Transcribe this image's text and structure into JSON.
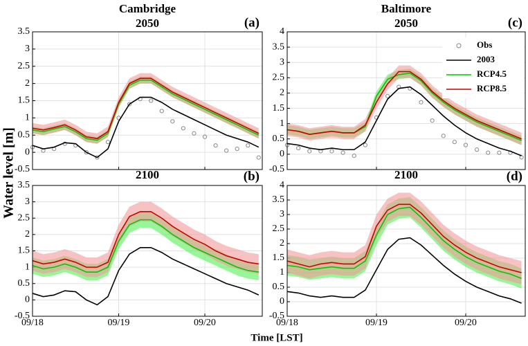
{
  "figure": {
    "xlabel": "Time [LST]",
    "ylabel": "Water level [m]"
  },
  "chart_data": [
    {
      "type": "line",
      "title": "Cambridge",
      "subtitle": "2050",
      "panel_label": "(a)",
      "grid": true,
      "x": [
        0,
        3,
        6,
        9,
        12,
        15,
        18,
        21,
        24,
        27,
        30,
        33,
        36,
        39,
        42,
        45,
        48,
        51,
        54,
        57,
        60,
        63
      ],
      "xlim": [
        0,
        64
      ],
      "xticks": [
        0,
        24,
        48
      ],
      "ylim": [
        -0.5,
        3.5
      ],
      "yticks": [
        -0.5,
        0,
        0.5,
        1,
        1.5,
        2,
        2.5,
        3,
        3.5
      ],
      "series": [
        {
          "marker": "circle",
          "color": "#888888",
          "values": [
            0.15,
            0.05,
            0.1,
            0.25,
            0.2,
            0.0,
            -0.15,
            0.3,
            1.0,
            1.4,
            1.55,
            1.5,
            1.2,
            0.9,
            0.7,
            0.55,
            0.45,
            0.2,
            0.05,
            0.1,
            0.2,
            -0.15
          ]
        },
        {
          "color": "#000000",
          "values": [
            0.2,
            0.1,
            0.15,
            0.28,
            0.25,
            0.0,
            -0.15,
            0.1,
            0.9,
            1.4,
            1.6,
            1.6,
            1.45,
            1.25,
            1.1,
            0.95,
            0.8,
            0.65,
            0.5,
            0.4,
            0.3,
            0.15
          ]
        },
        {
          "color": "#00c800",
          "band_color": "#55ee55",
          "values": [
            0.65,
            0.6,
            0.68,
            0.75,
            0.6,
            0.4,
            0.35,
            0.55,
            1.4,
            1.95,
            2.1,
            2.1,
            1.9,
            1.7,
            1.55,
            1.4,
            1.25,
            1.1,
            0.95,
            0.8,
            0.65,
            0.5
          ],
          "lower": [
            0.55,
            0.5,
            0.58,
            0.65,
            0.5,
            0.3,
            0.25,
            0.45,
            1.3,
            1.85,
            2.0,
            2.0,
            1.8,
            1.6,
            1.45,
            1.3,
            1.15,
            1.0,
            0.85,
            0.7,
            0.55,
            0.4
          ],
          "upper": [
            0.75,
            0.7,
            0.78,
            0.85,
            0.7,
            0.5,
            0.45,
            0.65,
            1.5,
            2.05,
            2.2,
            2.2,
            2.0,
            1.8,
            1.65,
            1.5,
            1.35,
            1.2,
            1.05,
            0.9,
            0.75,
            0.6
          ]
        },
        {
          "color": "#cc0000",
          "band_color": "#f49a9a",
          "values": [
            0.7,
            0.65,
            0.72,
            0.8,
            0.65,
            0.45,
            0.4,
            0.6,
            1.45,
            2.0,
            2.15,
            2.15,
            1.95,
            1.75,
            1.6,
            1.45,
            1.3,
            1.15,
            1.0,
            0.85,
            0.7,
            0.55
          ],
          "lower": [
            0.55,
            0.5,
            0.57,
            0.65,
            0.5,
            0.3,
            0.25,
            0.45,
            1.3,
            1.85,
            2.0,
            2.0,
            1.8,
            1.6,
            1.45,
            1.3,
            1.15,
            1.0,
            0.85,
            0.7,
            0.55,
            0.4
          ],
          "upper": [
            0.85,
            0.8,
            0.87,
            0.95,
            0.8,
            0.6,
            0.55,
            0.75,
            1.6,
            2.15,
            2.3,
            2.3,
            2.1,
            1.9,
            1.75,
            1.6,
            1.45,
            1.3,
            1.15,
            1.0,
            0.85,
            0.7
          ]
        }
      ]
    },
    {
      "type": "line",
      "title": "2100",
      "panel_label": "(b)",
      "grid": true,
      "x": [
        0,
        3,
        6,
        9,
        12,
        15,
        18,
        21,
        24,
        27,
        30,
        33,
        36,
        39,
        42,
        45,
        48,
        51,
        54,
        57,
        60,
        63
      ],
      "xlim": [
        0,
        64
      ],
      "xticks": [
        {
          "value": 0,
          "label": "09/18"
        },
        {
          "value": 24,
          "label": "09/19"
        },
        {
          "value": 48,
          "label": "09/20"
        }
      ],
      "ylim": [
        -0.5,
        3.5
      ],
      "yticks": [
        -0.5,
        0,
        0.5,
        1,
        1.5,
        2,
        2.5,
        3,
        3.5
      ],
      "series": [
        {
          "color": "#000000",
          "values": [
            0.2,
            0.1,
            0.15,
            0.28,
            0.25,
            0.0,
            -0.15,
            0.1,
            0.9,
            1.4,
            1.6,
            1.6,
            1.45,
            1.25,
            1.1,
            0.95,
            0.8,
            0.65,
            0.5,
            0.4,
            0.3,
            0.15
          ]
        },
        {
          "color": "#00c800",
          "band_color": "#55ee55",
          "values": [
            1.05,
            0.95,
            1.0,
            1.1,
            1.0,
            0.85,
            0.85,
            1.0,
            1.8,
            2.3,
            2.45,
            2.45,
            2.25,
            2.0,
            1.8,
            1.6,
            1.45,
            1.3,
            1.15,
            1.0,
            0.9,
            0.85
          ],
          "lower": [
            0.8,
            0.7,
            0.75,
            0.85,
            0.75,
            0.6,
            0.6,
            0.75,
            1.55,
            2.05,
            2.2,
            2.2,
            2.0,
            1.75,
            1.55,
            1.35,
            1.2,
            1.05,
            0.9,
            0.75,
            0.65,
            0.6
          ],
          "upper": [
            1.3,
            1.2,
            1.25,
            1.35,
            1.25,
            1.1,
            1.1,
            1.25,
            2.05,
            2.55,
            2.7,
            2.7,
            2.5,
            2.25,
            2.05,
            1.85,
            1.7,
            1.55,
            1.4,
            1.25,
            1.15,
            1.1
          ]
        },
        {
          "color": "#cc0000",
          "band_color": "#f49a9a",
          "values": [
            1.2,
            1.1,
            1.15,
            1.25,
            1.15,
            1.0,
            1.0,
            1.15,
            2.0,
            2.55,
            2.7,
            2.7,
            2.5,
            2.25,
            2.05,
            1.85,
            1.7,
            1.5,
            1.35,
            1.25,
            1.15,
            1.1
          ],
          "lower": [
            0.9,
            0.8,
            0.85,
            0.95,
            0.85,
            0.7,
            0.7,
            0.85,
            1.7,
            2.25,
            2.4,
            2.4,
            2.2,
            1.95,
            1.75,
            1.55,
            1.4,
            1.2,
            1.05,
            0.95,
            0.85,
            0.8
          ],
          "upper": [
            1.5,
            1.4,
            1.45,
            1.55,
            1.45,
            1.3,
            1.3,
            1.45,
            2.3,
            2.85,
            3.0,
            3.0,
            2.8,
            2.55,
            2.35,
            2.15,
            2.0,
            1.8,
            1.65,
            1.55,
            1.45,
            1.4
          ]
        }
      ]
    },
    {
      "type": "line",
      "title": "Baltimore",
      "subtitle": "2050",
      "panel_label": "(c)",
      "grid": true,
      "legend": "upper right",
      "x": [
        0,
        3,
        6,
        9,
        12,
        15,
        18,
        21,
        24,
        27,
        30,
        33,
        36,
        39,
        42,
        45,
        48,
        51,
        54,
        57,
        60,
        63
      ],
      "xlim": [
        0,
        64
      ],
      "xticks": [
        0,
        24,
        48
      ],
      "ylim": [
        -0.5,
        4
      ],
      "yticks": [
        -0.5,
        0,
        0.5,
        1,
        1.5,
        2,
        2.5,
        3,
        3.5,
        4
      ],
      "series": [
        {
          "name": "Obs",
          "marker": "circle",
          "color": "#888888",
          "values": [
            0.3,
            0.2,
            0.1,
            0.1,
            0.1,
            0.05,
            -0.05,
            0.3,
            1.2,
            1.9,
            2.2,
            2.15,
            1.7,
            1.1,
            0.6,
            0.4,
            0.3,
            0.15,
            0.05,
            0.05,
            0.05,
            -0.1
          ]
        },
        {
          "name": "2003",
          "color": "#000000",
          "values": [
            0.35,
            0.3,
            0.2,
            0.15,
            0.2,
            0.15,
            0.15,
            0.4,
            1.1,
            1.8,
            2.15,
            2.2,
            1.95,
            1.6,
            1.25,
            0.95,
            0.7,
            0.5,
            0.35,
            0.2,
            0.1,
            -0.05
          ]
        },
        {
          "name": "RCP4.5",
          "color": "#00c800",
          "band_color": "#55ee55",
          "values": [
            0.8,
            0.75,
            0.65,
            0.7,
            0.75,
            0.7,
            0.7,
            0.9,
            1.9,
            2.45,
            2.6,
            2.65,
            2.4,
            2.0,
            1.7,
            1.45,
            1.25,
            1.05,
            0.9,
            0.75,
            0.6,
            0.45
          ],
          "lower": [
            0.65,
            0.6,
            0.5,
            0.55,
            0.6,
            0.55,
            0.55,
            0.75,
            1.75,
            2.3,
            2.45,
            2.5,
            2.25,
            1.85,
            1.55,
            1.3,
            1.1,
            0.9,
            0.75,
            0.6,
            0.45,
            0.3
          ],
          "upper": [
            0.95,
            0.9,
            0.8,
            0.85,
            0.9,
            0.85,
            0.85,
            1.05,
            2.05,
            2.6,
            2.75,
            2.8,
            2.55,
            2.15,
            1.85,
            1.6,
            1.4,
            1.2,
            1.05,
            0.9,
            0.75,
            0.6
          ]
        },
        {
          "name": "RCP8.5",
          "color": "#cc0000",
          "band_color": "#f49a9a",
          "values": [
            0.8,
            0.75,
            0.65,
            0.7,
            0.75,
            0.7,
            0.7,
            0.95,
            1.7,
            2.3,
            2.7,
            2.7,
            2.45,
            2.05,
            1.75,
            1.5,
            1.3,
            1.1,
            0.95,
            0.8,
            0.65,
            0.5
          ],
          "lower": [
            0.6,
            0.55,
            0.45,
            0.5,
            0.55,
            0.5,
            0.5,
            0.75,
            1.5,
            2.1,
            2.5,
            2.5,
            2.25,
            1.85,
            1.55,
            1.3,
            1.1,
            0.9,
            0.75,
            0.6,
            0.45,
            0.3
          ],
          "upper": [
            1.0,
            0.95,
            0.85,
            0.9,
            0.95,
            0.9,
            0.9,
            1.15,
            1.9,
            2.5,
            2.9,
            2.9,
            2.65,
            2.25,
            1.95,
            1.7,
            1.5,
            1.3,
            1.15,
            1.0,
            0.85,
            0.7
          ]
        }
      ]
    },
    {
      "type": "line",
      "title": "2100",
      "panel_label": "(d)",
      "grid": true,
      "x": [
        0,
        3,
        6,
        9,
        12,
        15,
        18,
        21,
        24,
        27,
        30,
        33,
        36,
        39,
        42,
        45,
        48,
        51,
        54,
        57,
        60,
        63
      ],
      "xlim": [
        0,
        64
      ],
      "xticks": [
        {
          "value": 0,
          "label": "09/18"
        },
        {
          "value": 24,
          "label": "09/19"
        },
        {
          "value": 48,
          "label": "09/20"
        }
      ],
      "ylim": [
        -0.5,
        4
      ],
      "yticks": [
        -0.5,
        0,
        0.5,
        1,
        1.5,
        2,
        2.5,
        3,
        3.5,
        4
      ],
      "series": [
        {
          "color": "#000000",
          "values": [
            0.35,
            0.3,
            0.2,
            0.15,
            0.2,
            0.15,
            0.15,
            0.4,
            1.1,
            1.8,
            2.15,
            2.2,
            1.95,
            1.6,
            1.25,
            0.95,
            0.7,
            0.5,
            0.35,
            0.2,
            0.1,
            -0.05
          ]
        },
        {
          "color": "#00c800",
          "band_color": "#55ee55",
          "values": [
            1.25,
            1.2,
            1.1,
            1.15,
            1.2,
            1.15,
            1.15,
            1.4,
            2.3,
            3.0,
            3.2,
            3.25,
            2.9,
            2.5,
            2.1,
            1.8,
            1.55,
            1.35,
            1.2,
            1.05,
            0.95,
            0.8
          ],
          "lower": [
            0.9,
            0.85,
            0.75,
            0.8,
            0.85,
            0.8,
            0.8,
            1.05,
            1.95,
            2.65,
            2.85,
            2.9,
            2.55,
            2.15,
            1.75,
            1.45,
            1.2,
            1.0,
            0.85,
            0.7,
            0.6,
            0.45
          ],
          "upper": [
            1.6,
            1.55,
            1.45,
            1.5,
            1.55,
            1.5,
            1.5,
            1.75,
            2.65,
            3.35,
            3.55,
            3.6,
            3.25,
            2.85,
            2.45,
            2.15,
            1.9,
            1.7,
            1.55,
            1.4,
            1.3,
            1.15
          ]
        },
        {
          "color": "#cc0000",
          "band_color": "#f49a9a",
          "values": [
            1.4,
            1.3,
            1.2,
            1.3,
            1.35,
            1.3,
            1.3,
            1.55,
            2.6,
            3.15,
            3.35,
            3.35,
            3.05,
            2.65,
            2.25,
            1.95,
            1.7,
            1.5,
            1.35,
            1.2,
            1.1,
            1.0
          ],
          "lower": [
            1.0,
            0.9,
            0.8,
            0.9,
            0.95,
            0.9,
            0.9,
            1.15,
            2.2,
            2.75,
            2.95,
            2.95,
            2.65,
            2.25,
            1.85,
            1.55,
            1.3,
            1.1,
            0.95,
            0.8,
            0.7,
            0.6
          ],
          "upper": [
            1.8,
            1.7,
            1.6,
            1.7,
            1.75,
            1.7,
            1.7,
            1.95,
            3.0,
            3.55,
            3.75,
            3.75,
            3.45,
            3.05,
            2.65,
            2.35,
            2.1,
            1.9,
            1.75,
            1.6,
            1.5,
            1.4
          ]
        }
      ]
    }
  ]
}
